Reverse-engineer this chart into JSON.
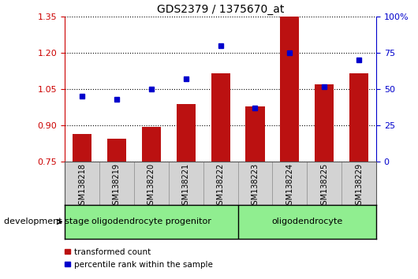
{
  "title": "GDS2379 / 1375670_at",
  "samples": [
    "GSM138218",
    "GSM138219",
    "GSM138220",
    "GSM138221",
    "GSM138222",
    "GSM138223",
    "GSM138224",
    "GSM138225",
    "GSM138229"
  ],
  "red_bars": [
    0.865,
    0.845,
    0.895,
    0.99,
    1.115,
    0.98,
    1.35,
    1.07,
    1.115
  ],
  "blue_dots": [
    45,
    43,
    50,
    57,
    80,
    37,
    75,
    52,
    70
  ],
  "ylim_left": [
    0.75,
    1.35
  ],
  "ylim_right": [
    0,
    100
  ],
  "yticks_left": [
    0.75,
    0.9,
    1.05,
    1.2,
    1.35
  ],
  "yticks_right": [
    0,
    25,
    50,
    75,
    100
  ],
  "bar_color": "#bb1111",
  "dot_color": "#0000cc",
  "bar_bottom": 0.75,
  "groups": [
    {
      "label": "oligodendrocyte progenitor",
      "start": 0,
      "end": 5
    },
    {
      "label": "oligodendrocyte",
      "start": 5,
      "end": 9
    }
  ],
  "group_label_row": "development stage",
  "legend_bar_label": "transformed count",
  "legend_dot_label": "percentile rank within the sample",
  "title_color": "#000000",
  "left_axis_color": "#cc0000",
  "right_axis_color": "#0000cc",
  "grid_color": "#000000",
  "tick_area_color": "#d3d3d3",
  "group_area_color": "#90ee90",
  "group_border_color": "#000000"
}
